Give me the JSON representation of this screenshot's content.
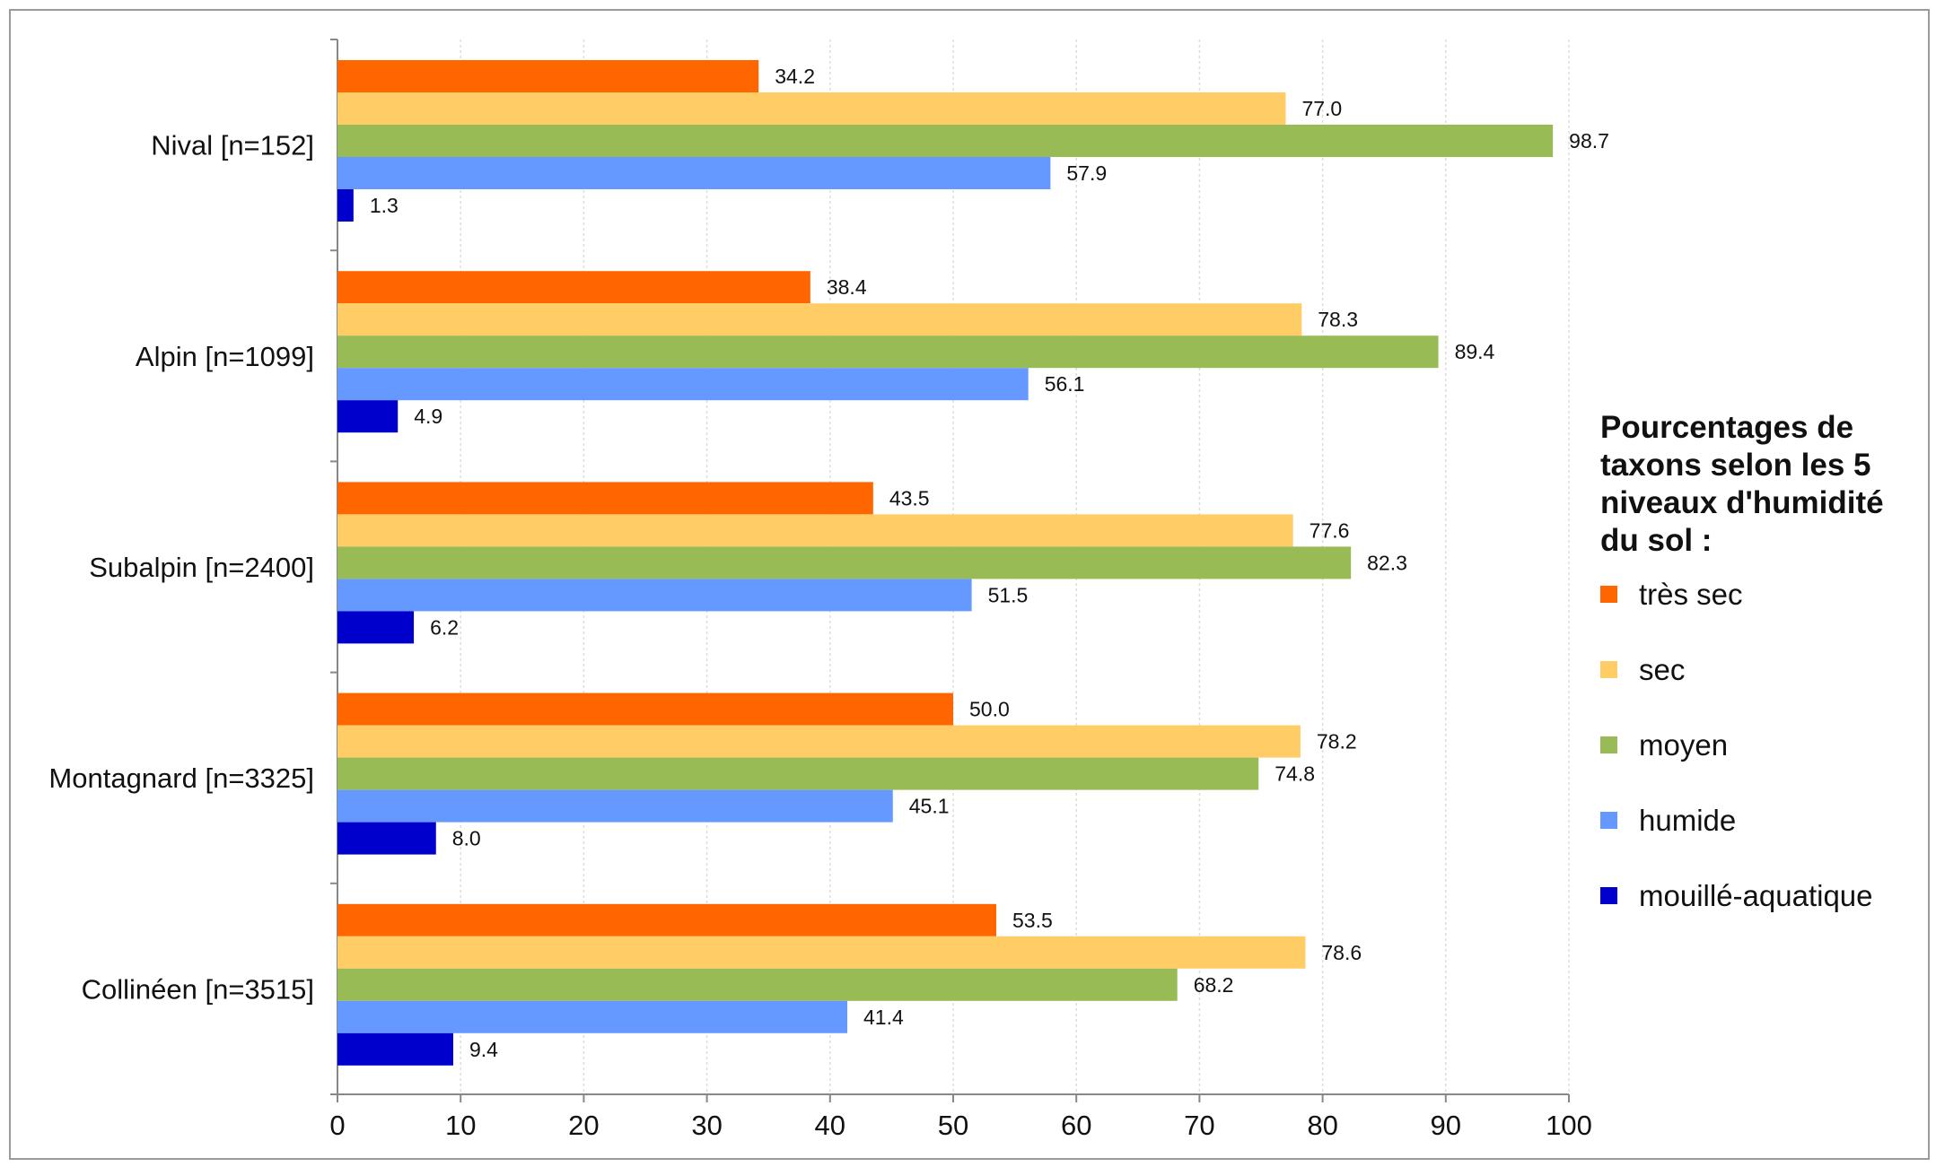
{
  "chart_data": {
    "type": "bar",
    "orientation": "horizontal",
    "categories": [
      "Nival [n=152]",
      "Alpin [n=1099]",
      "Subalpin [n=2400]",
      "Montagnard [n=3325]",
      "Collinéen [n=3515]"
    ],
    "series": [
      {
        "name": "très sec",
        "color": "#ff6600",
        "values": [
          34.2,
          38.4,
          43.5,
          50.0,
          53.5
        ]
      },
      {
        "name": "sec",
        "color": "#ffcc66",
        "values": [
          77.0,
          78.3,
          77.6,
          78.2,
          78.6
        ]
      },
      {
        "name": "moyen",
        "color": "#99bb55",
        "values": [
          98.7,
          89.4,
          82.3,
          74.8,
          68.2
        ]
      },
      {
        "name": "humide",
        "color": "#6699ff",
        "values": [
          57.9,
          56.1,
          51.5,
          45.1,
          41.4
        ]
      },
      {
        "name": "mouillé-aquatique",
        "color": "#0000cc",
        "values": [
          1.3,
          4.9,
          6.2,
          8.0,
          9.4
        ]
      }
    ],
    "xlim": [
      0,
      100
    ],
    "xticks": [
      "0",
      "10",
      "20",
      "30",
      "40",
      "50",
      "60",
      "70",
      "80",
      "90",
      "100"
    ],
    "value_format_decimals": 1,
    "grid": "vertical gridlines",
    "legend_title": "Pourcentages de taxons selon les 5 niveaux d'humidité du sol :",
    "legend_title_lines": [
      "Pourcentages de",
      "taxons selon les 5",
      "niveaux d'humidité",
      "du sol :"
    ],
    "legend_position": "right"
  }
}
